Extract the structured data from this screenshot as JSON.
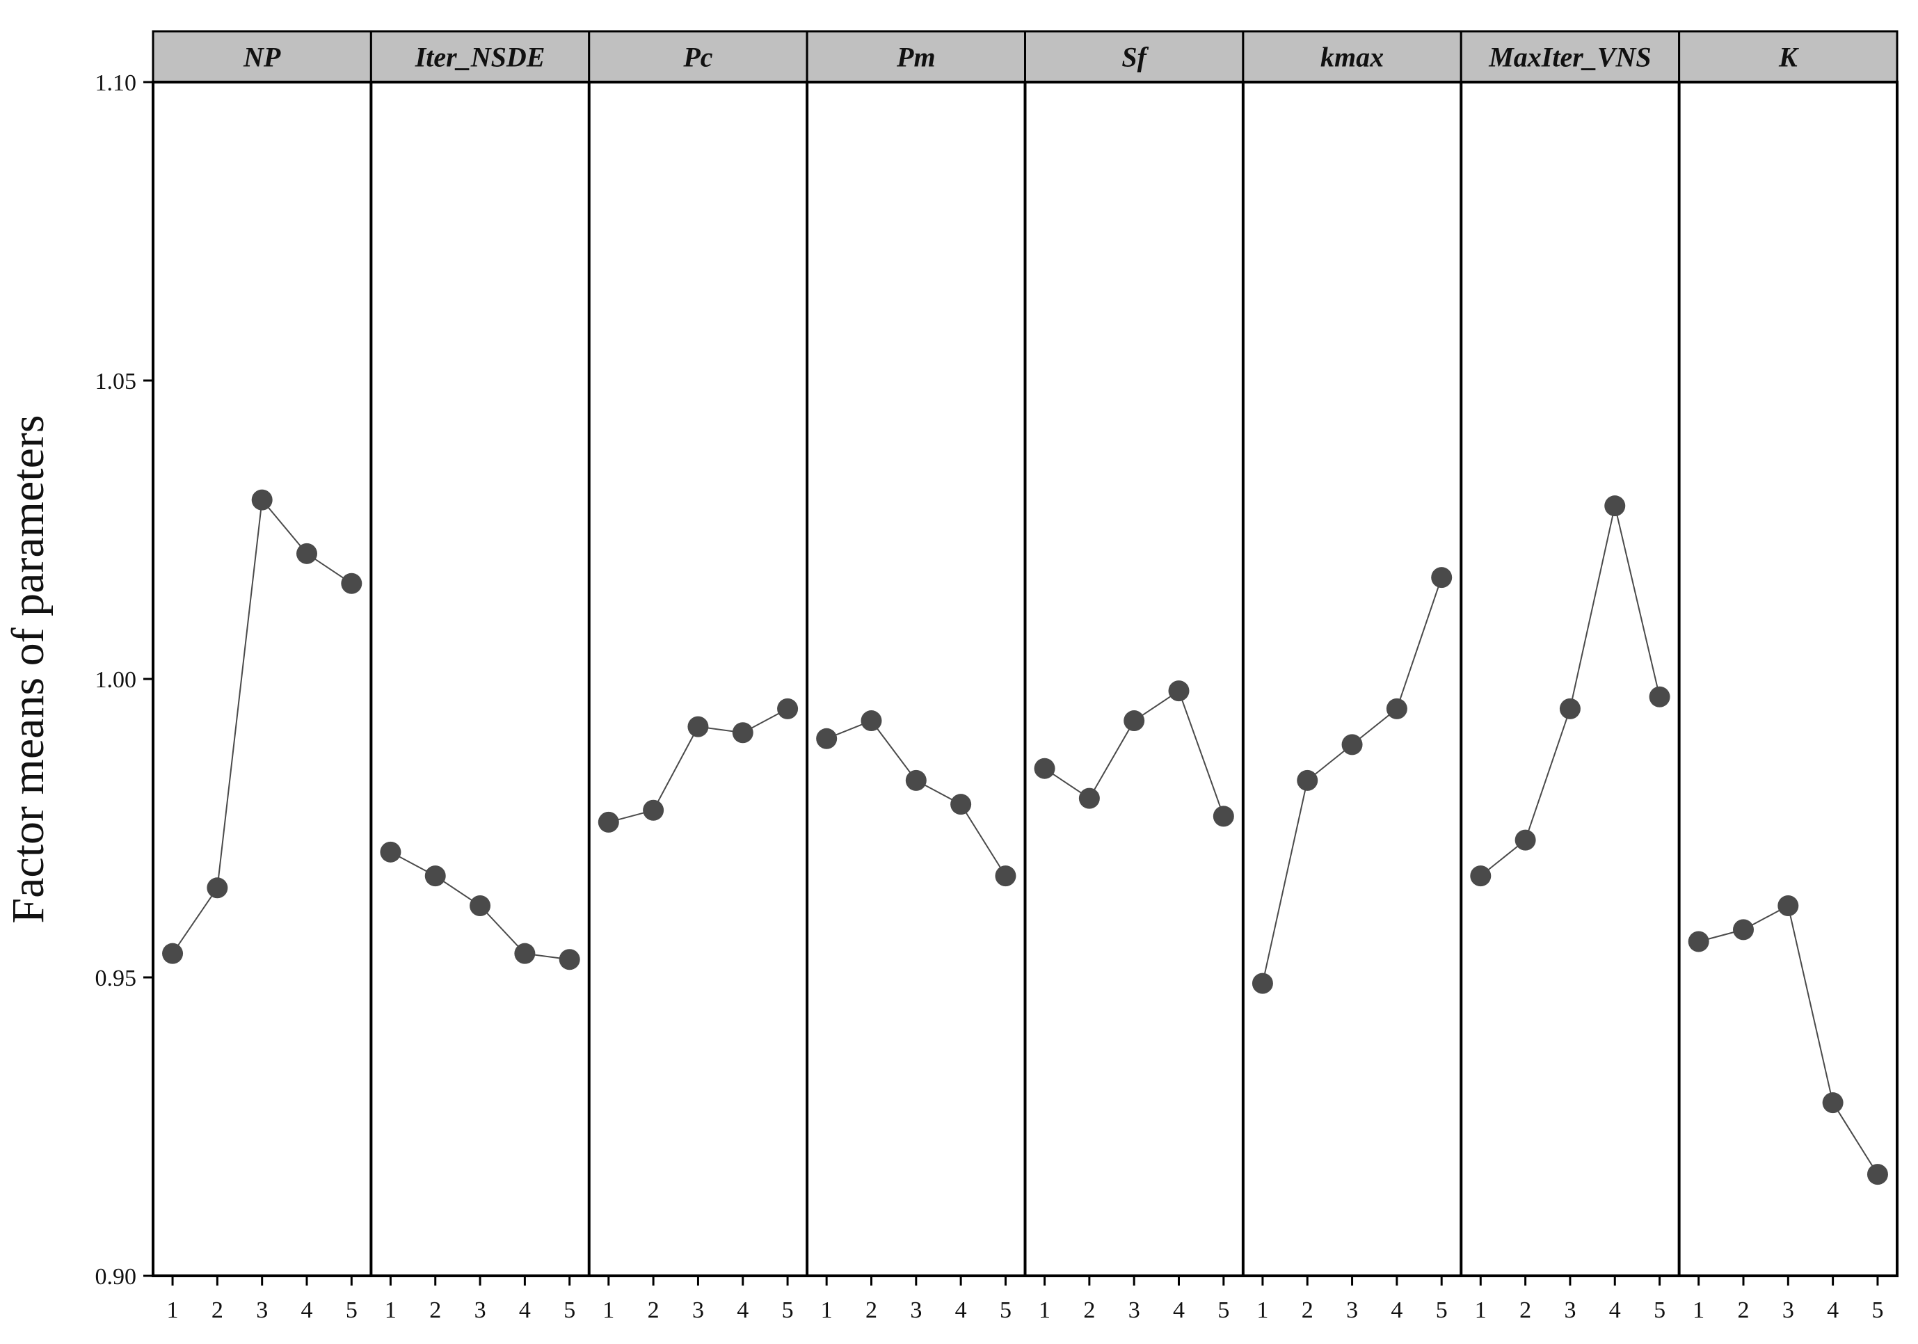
{
  "chart_data": {
    "type": "line",
    "title": "",
    "xlabel": "",
    "ylabel": "Factor means of parameters",
    "ylim": [
      0.9,
      1.1
    ],
    "yticks": [
      "0.90",
      "0.95",
      "1.00",
      "1.05",
      "1.10"
    ],
    "levels": [
      "1",
      "2",
      "3",
      "4",
      "5"
    ],
    "grid": false,
    "legend": "none",
    "colors": {
      "marker": "#4a4a4a",
      "line": "#4a4a4a",
      "header_bg": "#c0c0c0",
      "frame": "#000000"
    },
    "panels": [
      {
        "name": "NP",
        "values": [
          0.954,
          0.965,
          1.03,
          1.021,
          1.016
        ]
      },
      {
        "name": "Iter_NSDE",
        "values": [
          0.971,
          0.967,
          0.962,
          0.954,
          0.953
        ]
      },
      {
        "name": "Pc",
        "values": [
          0.976,
          0.978,
          0.992,
          0.991,
          0.995
        ]
      },
      {
        "name": "Pm",
        "values": [
          0.99,
          0.993,
          0.983,
          0.979,
          0.967
        ]
      },
      {
        "name": "Sf",
        "values": [
          0.985,
          0.98,
          0.993,
          0.998,
          0.977
        ]
      },
      {
        "name": "kmax",
        "values": [
          0.949,
          0.983,
          0.989,
          0.995,
          1.017
        ]
      },
      {
        "name": "MaxIter_VNS",
        "values": [
          0.967,
          0.973,
          0.995,
          1.029,
          0.997
        ]
      },
      {
        "name": "K",
        "values": [
          0.956,
          0.958,
          0.962,
          0.929,
          0.917
        ]
      }
    ]
  }
}
